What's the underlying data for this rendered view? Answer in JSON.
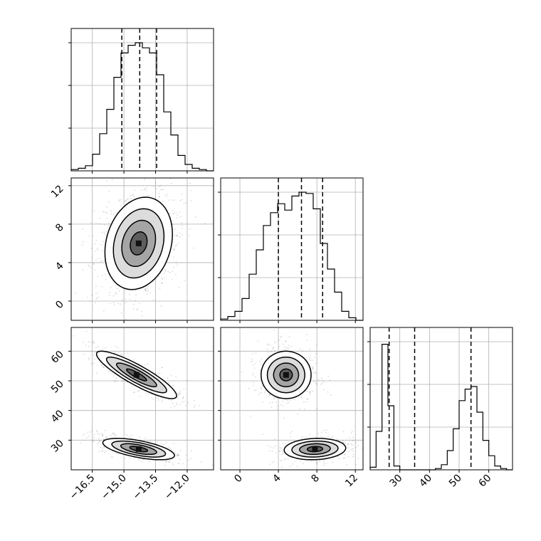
{
  "chart_data": {
    "type": "corner",
    "title": "",
    "parameters": [
      {
        "name": "",
        "range": [
          -17.5,
          -10.75
        ],
        "ticks": [
          -16.5,
          -15.0,
          -13.5,
          -12.0
        ],
        "tick_labels": [
          "−16.5",
          "−15.0",
          "−13.5",
          "−12.0"
        ],
        "quantiles": [
          -15.1,
          -14.25,
          -13.45
        ]
      },
      {
        "name": "",
        "range": [
          -2.0,
          12.8
        ],
        "ticks": [
          0,
          4,
          8,
          12
        ],
        "tick_labels": [
          "0",
          "4",
          "8",
          "12"
        ],
        "quantiles": [
          4.0,
          6.4,
          8.6
        ]
      },
      {
        "name": "",
        "range": [
          20.0,
          68.0
        ],
        "ticks": [
          30,
          40,
          50,
          60
        ],
        "tick_labels": [
          "30",
          "40",
          "50",
          "60"
        ],
        "quantiles": [
          26.4,
          35.0,
          54.0
        ]
      }
    ],
    "histograms": [
      {
        "param": 0,
        "bins": 20,
        "values": [
          0.01,
          0.02,
          0.04,
          0.13,
          0.29,
          0.48,
          0.73,
          0.92,
          0.98,
          1.0,
          0.96,
          0.92,
          0.75,
          0.46,
          0.28,
          0.12,
          0.05,
          0.02,
          0.01,
          0.0
        ]
      },
      {
        "param": 1,
        "bins": 20,
        "values": [
          0.01,
          0.03,
          0.07,
          0.17,
          0.36,
          0.55,
          0.74,
          0.84,
          0.91,
          0.86,
          0.97,
          1.0,
          0.99,
          0.87,
          0.6,
          0.4,
          0.22,
          0.07,
          0.02,
          0.0
        ]
      },
      {
        "param": 2,
        "bins": 24,
        "values": [
          0.02,
          0.3,
          0.98,
          0.5,
          0.03,
          0.0,
          0.0,
          0.0,
          0.0,
          0.0,
          0.0,
          0.01,
          0.04,
          0.15,
          0.32,
          0.54,
          0.63,
          0.65,
          0.45,
          0.23,
          0.11,
          0.03,
          0.01,
          0.0
        ]
      }
    ],
    "joint": [
      {
        "x": 0,
        "y": 1,
        "clusters": [
          {
            "mx": -14.3,
            "my": 6.0,
            "sx": 0.8,
            "sy": 2.4,
            "rho": 0.2,
            "n": 900
          }
        ]
      },
      {
        "x": 0,
        "y": 2,
        "clusters": [
          {
            "mx": -14.4,
            "my": 52.0,
            "sx": 0.95,
            "sy": 4.0,
            "rho": -0.88,
            "n": 450
          },
          {
            "mx": -14.3,
            "my": 27.0,
            "sx": 0.85,
            "sy": 1.8,
            "rho": -0.6,
            "n": 450
          }
        ]
      },
      {
        "x": 1,
        "y": 2,
        "clusters": [
          {
            "mx": 4.8,
            "my": 52.0,
            "sx": 1.3,
            "sy": 4.0,
            "rho": 0.0,
            "n": 450
          },
          {
            "mx": 7.8,
            "my": 27.0,
            "sx": 1.6,
            "sy": 1.8,
            "rho": 0.1,
            "n": 450
          }
        ]
      }
    ],
    "grid": true,
    "legend": "none"
  }
}
